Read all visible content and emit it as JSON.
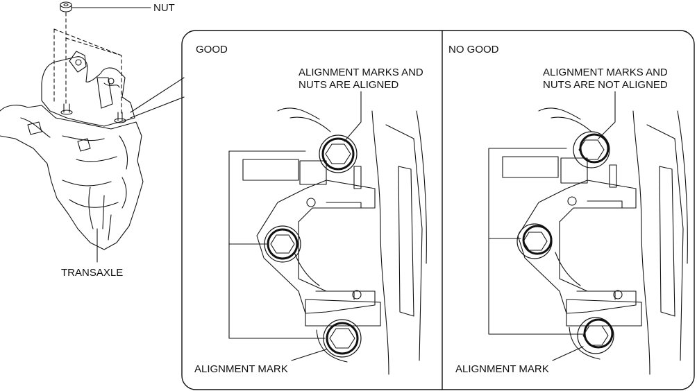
{
  "labels": {
    "nut": "NUT",
    "transaxle": "TRANSAXLE",
    "good": {
      "heading": "GOOD",
      "callout_line1": "ALIGNMENT MARKS AND",
      "callout_line2": "NUTS ARE ALIGNED",
      "mark": "ALIGNMENT MARK"
    },
    "no_good": {
      "heading": "NO GOOD",
      "callout_line1": "ALIGNMENT MARKS AND",
      "callout_line2": "NUTS ARE NOT ALIGNED",
      "mark": "ALIGNMENT MARK"
    }
  },
  "colors": {
    "ink": "#111111",
    "background": "#ffffff"
  }
}
